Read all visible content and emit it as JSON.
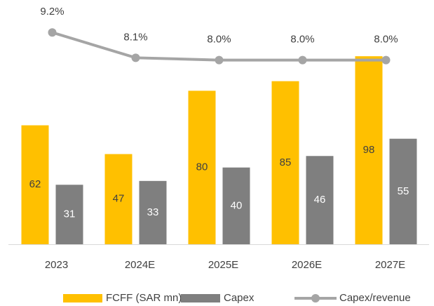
{
  "chart_data": {
    "type": "bar",
    "categories": [
      "2023",
      "2024E",
      "2025E",
      "2026E",
      "2027E"
    ],
    "series": [
      {
        "name": "FCFF (SAR mn)",
        "type": "bar",
        "color": "#FFC000",
        "values": [
          62,
          47,
          80,
          85,
          98
        ]
      },
      {
        "name": "Capex",
        "type": "bar",
        "color": "#7F7F7F",
        "values": [
          31,
          33,
          40,
          46,
          55
        ]
      },
      {
        "name": "Capex/revenue",
        "type": "line",
        "axis": "y2",
        "color": "#A5A5A5",
        "values": [
          9.2,
          8.1,
          8.0,
          8.0,
          8.0
        ],
        "value_labels": [
          "9.2%",
          "8.1%",
          "8.0%",
          "8.0%",
          "8.0%"
        ]
      }
    ],
    "ylim": [
      0,
      120
    ],
    "y2lim": [
      0,
      10
    ],
    "legend": "bottom"
  }
}
